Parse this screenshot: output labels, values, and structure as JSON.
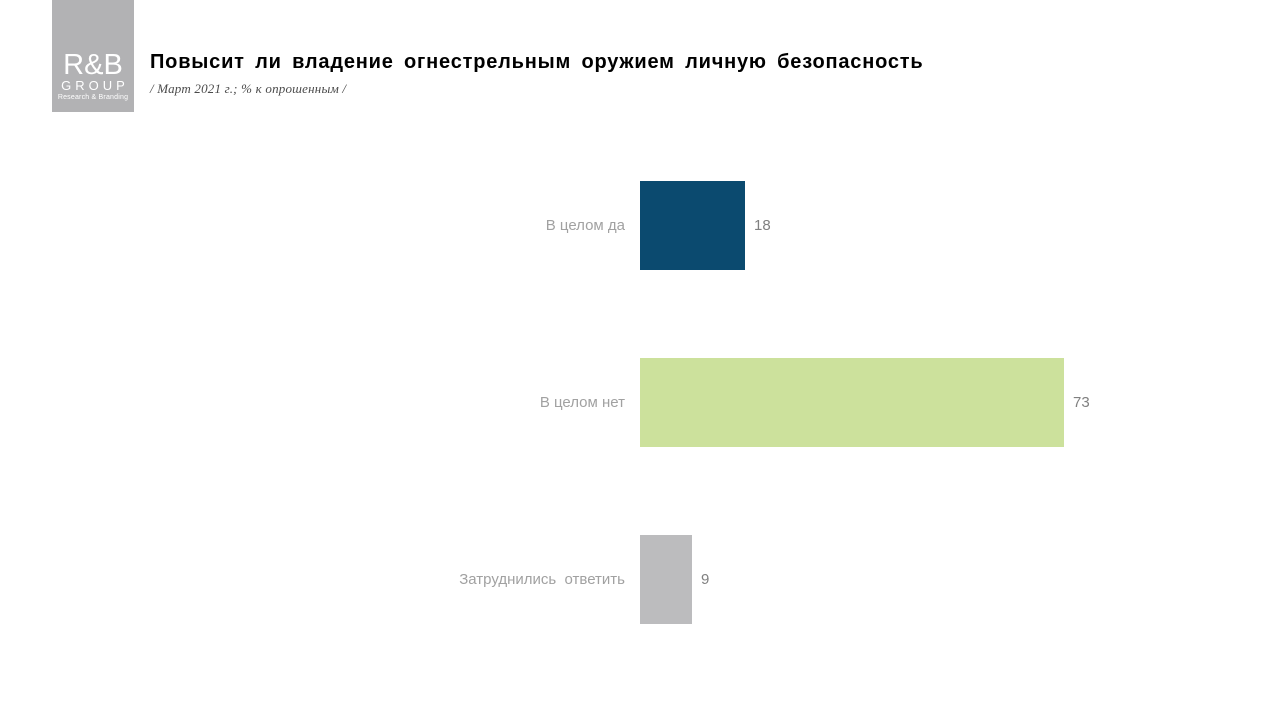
{
  "header": {
    "logo": {
      "primary": "R&B",
      "secondary": "GROUP",
      "tagline": "Research & Branding"
    }
  },
  "chart_data": {
    "type": "bar",
    "orientation": "horizontal",
    "title": "Повысит ли владение огнестрельным оружием личную безопасность",
    "subtitle": "/ Март 2021 г.; % к опрошенным /",
    "categories": [
      "В целом да",
      "В целом нет",
      "Затруднились  ответить"
    ],
    "values": [
      18,
      73,
      9
    ],
    "bar_colors": [
      "#0b4a6f",
      "#cce19c",
      "#bcbcbe"
    ],
    "xlim": [
      0,
      73
    ],
    "data_labels": true,
    "grid": false,
    "legend": false,
    "axes_visible": false
  },
  "colors": {
    "logo_background": "#b2b2b4",
    "logo_text": "#ffffff",
    "title_text": "#000000",
    "subtitle_text": "#4a4a4a",
    "category_label": "#a1a1a1",
    "value_label": "#808080",
    "page_background": "#ffffff"
  }
}
